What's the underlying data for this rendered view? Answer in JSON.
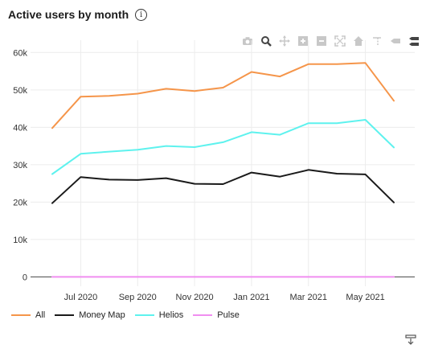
{
  "header": {
    "title": "Active users by month",
    "info_glyph": "i"
  },
  "modebar": {
    "icons": [
      "camera-icon",
      "zoom-icon",
      "pan-icon",
      "zoom-in-icon",
      "zoom-out-icon",
      "autoscale-icon",
      "reset-axes-icon",
      "spike-lines-icon",
      "hover-closest-icon",
      "hover-compare-icon"
    ],
    "active": "zoom-icon"
  },
  "chart_data": {
    "type": "line",
    "title": "Active users by month",
    "x": [
      "2020-06",
      "2020-07",
      "2020-08",
      "2020-09",
      "2020-10",
      "2020-11",
      "2020-12",
      "2021-01",
      "2021-02",
      "2021-03",
      "2021-04",
      "2021-05",
      "2021-06"
    ],
    "x_tick_labels": [
      "Jul 2020",
      "Sep 2020",
      "Nov 2020",
      "Jan 2021",
      "Mar 2021",
      "May 2021"
    ],
    "x_tick_positions": [
      "2020-07",
      "2020-09",
      "2020-11",
      "2021-01",
      "2021-03",
      "2021-05"
    ],
    "y_tick_labels": [
      "0",
      "10k",
      "20k",
      "30k",
      "40k",
      "50k",
      "60k"
    ],
    "y_tick_values": [
      0,
      10000,
      20000,
      30000,
      40000,
      50000,
      60000
    ],
    "ylim": [
      -2500,
      62000
    ],
    "grid": true,
    "legend_position": "bottom-left",
    "series": [
      {
        "name": "All",
        "color": "#f5954a",
        "values": [
          39800,
          48200,
          48400,
          49000,
          50300,
          49700,
          50600,
          54800,
          53600,
          56900,
          56900,
          57200,
          47100
        ]
      },
      {
        "name": "Money Map",
        "color": "#1a1a1a",
        "values": [
          19700,
          26700,
          26000,
          25900,
          26400,
          24900,
          24800,
          27900,
          26800,
          28600,
          27600,
          27400,
          19900
        ]
      },
      {
        "name": "Helios",
        "color": "#5ef2ee",
        "values": [
          27500,
          32900,
          33500,
          34000,
          35000,
          34700,
          36000,
          38700,
          38000,
          41100,
          41100,
          42000,
          34600
        ]
      },
      {
        "name": "Pulse",
        "color": "#f08ef0",
        "values": [
          0,
          0,
          0,
          0,
          0,
          0,
          0,
          0,
          0,
          0,
          0,
          0,
          0
        ]
      }
    ]
  }
}
